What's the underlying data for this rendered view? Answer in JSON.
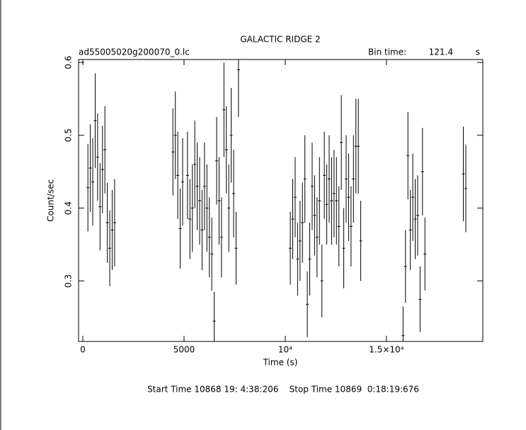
{
  "chart_data": {
    "type": "errorbar",
    "title": "GALACTIC RIDGE 2",
    "subtitle": "ad55005020g200070_0.lc",
    "bin_time_label": "Bin time:",
    "bin_time": 121.4,
    "bin_time_unit": "s",
    "xlabel": "Time (s)",
    "ylabel": "Count/sec",
    "footer": "Start Time 10868 19: 4:38:206    Stop Time 10869  0:18:19:676",
    "xlim": [
      -210,
      19760
    ],
    "ylim": [
      0.217,
      0.604
    ],
    "xticks": [
      0,
      5000,
      {
        "value": 10000,
        "label": "10⁴"
      },
      {
        "value": 15000,
        "label": "1.5×10⁴"
      }
    ],
    "yticks": [
      0.3,
      0.4,
      0.5,
      0.6
    ],
    "color": "#000000",
    "x": [
      250,
      370,
      490,
      610,
      730,
      850,
      970,
      1090,
      1210,
      1330,
      1450,
      1570,
      4450,
      4570,
      4690,
      4810,
      4930,
      5170,
      5290,
      5410,
      5530,
      5650,
      5770,
      5890,
      6010,
      6130,
      6250,
      6370,
      6490,
      6610,
      6730,
      6850,
      6970,
      7090,
      7210,
      7330,
      7450,
      7570,
      7690,
      10250,
      10370,
      10490,
      10610,
      10730,
      10850,
      10970,
      11090,
      11210,
      11330,
      11450,
      11570,
      11690,
      11810,
      11930,
      12050,
      12170,
      12290,
      12410,
      12530,
      12650,
      12770,
      12890,
      13010,
      13130,
      13250,
      13370,
      13490,
      13610,
      13730,
      15820,
      15940,
      16060,
      16180,
      16300,
      16420,
      16540,
      16660,
      16780,
      16900,
      18800,
      18920
    ],
    "values": [
      0.428,
      0.455,
      0.436,
      0.52,
      0.47,
      0.402,
      0.453,
      0.48,
      0.38,
      0.345,
      0.37,
      0.38,
      0.477,
      0.5,
      0.445,
      0.372,
      0.436,
      0.445,
      0.385,
      0.4,
      0.46,
      0.43,
      0.41,
      0.37,
      0.43,
      0.4,
      0.36,
      0.337,
      0.245,
      0.465,
      0.41,
      0.36,
      0.535,
      0.48,
      0.4,
      0.5,
      0.42,
      0.345,
      0.59,
      0.345,
      0.385,
      0.415,
      0.33,
      0.355,
      0.38,
      0.44,
      0.268,
      0.33,
      0.43,
      0.39,
      0.36,
      0.41,
      0.3,
      0.445,
      0.405,
      0.44,
      0.41,
      0.42,
      0.41,
      0.375,
      0.49,
      0.345,
      0.44,
      0.415,
      0.375,
      0.44,
      0.485,
      0.485,
      0.355,
      0.225,
      0.32,
      0.472,
      0.37,
      0.415,
      0.385,
      0.39,
      0.275,
      0.45,
      0.337,
      0.447,
      0.427
    ],
    "errors": [
      0.06,
      0.06,
      0.06,
      0.065,
      0.06,
      0.06,
      0.06,
      0.06,
      0.055,
      0.052,
      0.055,
      0.06,
      0.06,
      0.06,
      0.06,
      0.055,
      0.06,
      0.06,
      0.055,
      0.06,
      0.06,
      0.06,
      0.06,
      0.055,
      0.06,
      0.06,
      0.055,
      0.05,
      0.04,
      0.06,
      0.06,
      0.055,
      0.065,
      0.06,
      0.06,
      0.065,
      0.06,
      0.05,
      0.065,
      0.05,
      0.055,
      0.055,
      0.05,
      0.055,
      0.055,
      0.06,
      0.045,
      0.05,
      0.06,
      0.055,
      0.055,
      0.06,
      0.05,
      0.06,
      0.055,
      0.06,
      0.06,
      0.06,
      0.06,
      0.055,
      0.065,
      0.055,
      0.06,
      0.06,
      0.055,
      0.06,
      0.065,
      0.065,
      0.055,
      0.04,
      0.05,
      0.06,
      0.055,
      0.06,
      0.055,
      0.055,
      0.045,
      0.06,
      0.05,
      0.065,
      0.06
    ]
  }
}
